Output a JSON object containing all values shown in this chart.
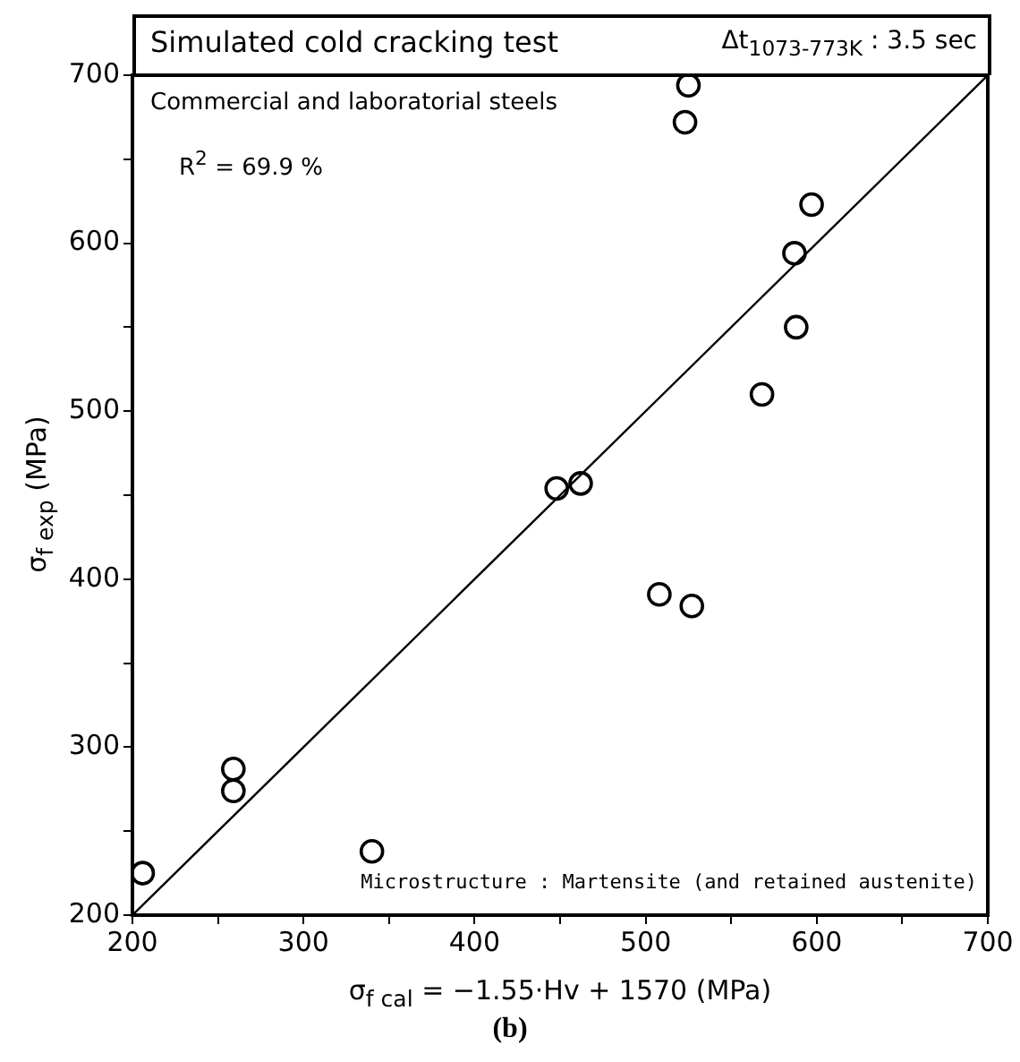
{
  "chart_data": {
    "type": "scatter",
    "title": "Simulated cold cracking test",
    "subtitle": "Δt$_{1073-773K}$ : 3.5 sec",
    "xlabel": "σ$_{f cal}$ = −1.55·Hv + 1570 (MPa)",
    "ylabel": "σ$_{f exp}$ (MPa)",
    "xlim": [
      200,
      700
    ],
    "ylim": [
      200,
      700
    ],
    "xticks": [
      200,
      {
        "value": 250,
        "label": null
      },
      300,
      {
        "value": 350,
        "label": null
      },
      400,
      {
        "value": 450,
        "label": null
      },
      500,
      {
        "value": 550,
        "label": null
      },
      600,
      {
        "value": 650,
        "label": null
      },
      700
    ],
    "yticks": [
      200,
      {
        "value": 250,
        "label": null
      },
      300,
      {
        "value": 350,
        "label": null
      },
      400,
      {
        "value": 450,
        "label": null
      },
      500,
      {
        "value": 550,
        "label": null
      },
      600,
      {
        "value": 650,
        "label": null
      },
      700
    ],
    "grid": false,
    "legend": false,
    "marker": "circle",
    "annotations": [
      "Commercial and laboratorial steels",
      "R$^{2}$ = 69.9 %",
      "Microstructure : Martensite (and retained austenite)",
      "(b)"
    ],
    "series": [
      {
        "color": "#000000",
        "x": [
          206,
          259,
          259,
          340,
          508,
          527,
          448,
          462,
          568,
          588,
          587,
          597,
          525,
          523
        ],
        "values": [
          225,
          287,
          274,
          238,
          391,
          384,
          454,
          457,
          510,
          550,
          594,
          623,
          694,
          672
        ]
      },
      {
        "type": "line",
        "color": "#000000",
        "marker": "none",
        "x": [
          200,
          700
        ],
        "values": [
          200,
          700
        ]
      }
    ]
  }
}
